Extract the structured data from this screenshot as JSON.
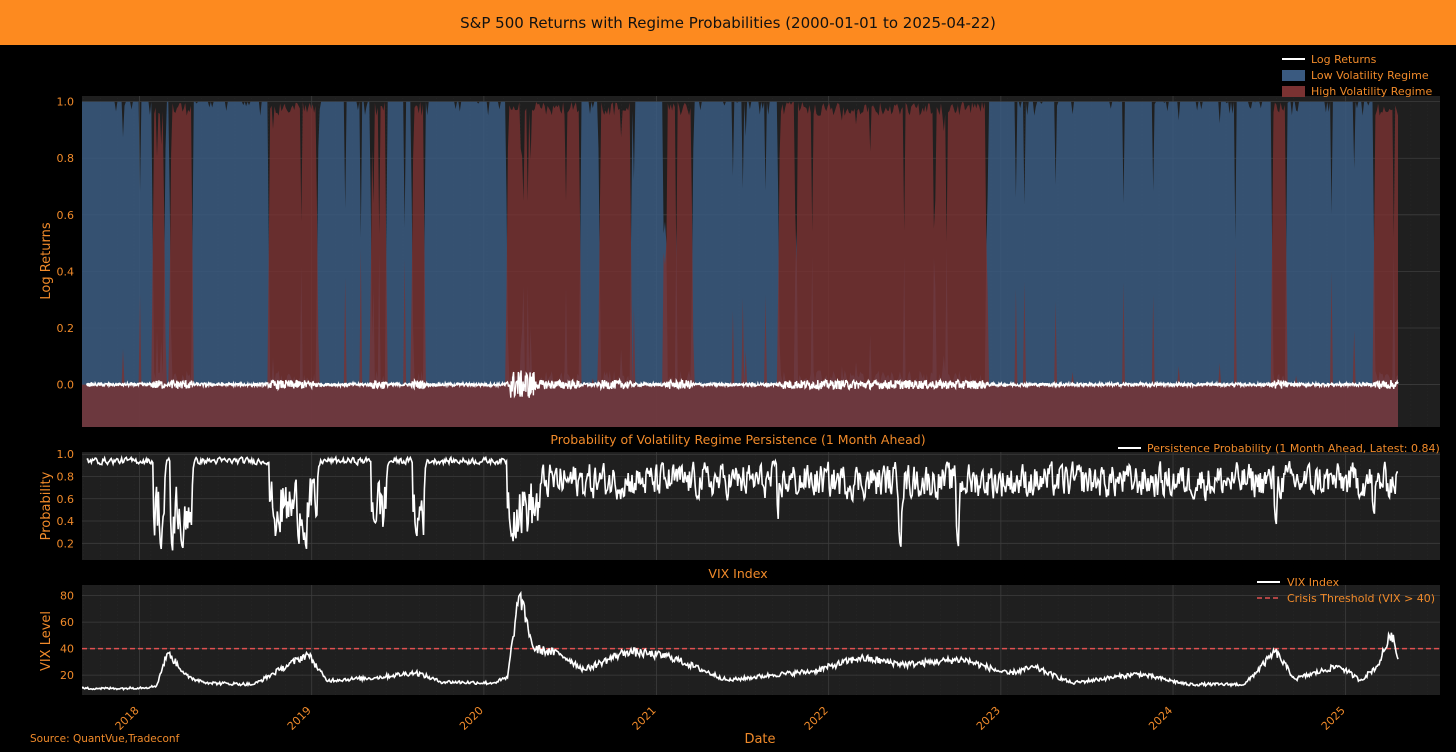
{
  "title": "S&P 500 Returns with Regime Probabilities (2000-01-01 to 2025-04-22)",
  "source": "Source: QuantVue,Tradeconf",
  "x_axis": {
    "label": "Date",
    "range": [
      "2017-09-01",
      "2025-07-20"
    ],
    "ticks": [
      "2018",
      "2019",
      "2020",
      "2021",
      "2022",
      "2023",
      "2024",
      "2025"
    ]
  },
  "colors": {
    "background": "#000000",
    "plot_background": "#1f1f1f",
    "banner": "#fd8a1f",
    "text": "#f08a2a",
    "low_regime": "#3a5a80",
    "high_regime": "#7a3232",
    "line": "#ffffff",
    "threshold": "#e05050"
  },
  "chart_data": [
    {
      "type": "area",
      "ylabel": "Log Returns",
      "ylim": [
        -0.15,
        1.02
      ],
      "yticks": [
        "0.0",
        "0.2",
        "0.4",
        "0.6",
        "0.8",
        "1.0"
      ],
      "grid": true,
      "legend_position": "top-right",
      "legend": [
        "Log Returns",
        "Low Volatility Regime",
        "High Volatility Regime"
      ],
      "series": [
        {
          "name": "Log Returns",
          "type": "line",
          "color": "#ffffff"
        },
        {
          "name": "Low Volatility Regime",
          "type": "area",
          "color": "#3a5a80"
        },
        {
          "name": "High Volatility Regime",
          "type": "area",
          "color": "#7a3232"
        }
      ],
      "high_volatility_periods": [
        [
          "2018-02-01",
          "2018-02-20"
        ],
        [
          "2018-03-10",
          "2018-04-20"
        ],
        [
          "2018-10-05",
          "2019-01-10"
        ],
        [
          "2019-05-10",
          "2019-06-05"
        ],
        [
          "2019-08-05",
          "2019-08-25"
        ],
        [
          "2020-02-22",
          "2020-06-20"
        ],
        [
          "2020-06-25",
          "2020-07-20"
        ],
        [
          "2020-09-05",
          "2020-11-05"
        ],
        [
          "2021-01-25",
          "2021-03-15"
        ],
        [
          "2021-09-20",
          "2022-11-30"
        ],
        [
          "2024-08-01",
          "2024-08-25"
        ],
        [
          "2025-03-05",
          "2025-04-22"
        ]
      ]
    },
    {
      "type": "line",
      "title": "Probability of Volatility Regime Persistence (1 Month Ahead)",
      "ylabel": "Probability",
      "ylim": [
        0.05,
        1.02
      ],
      "yticks": [
        "0.2",
        "0.4",
        "0.6",
        "0.8",
        "1.0"
      ],
      "grid": true,
      "legend_position": "top-right",
      "series": [
        {
          "name": "Persistence Probability (1 Month Ahead, Latest: 0.84)",
          "latest": 0.84
        }
      ]
    },
    {
      "type": "line",
      "title": "VIX Index",
      "ylabel": "VIX Level",
      "ylim": [
        5,
        88
      ],
      "yticks": [
        "20",
        "40",
        "60",
        "80"
      ],
      "grid": true,
      "legend_position": "top-right",
      "series": [
        {
          "name": "VIX Index",
          "x": [
            "2017-09-01",
            "2017-12-01",
            "2018-01-25",
            "2018-02-06",
            "2018-03-01",
            "2018-04-15",
            "2018-06-01",
            "2018-09-01",
            "2018-10-25",
            "2018-12-24",
            "2019-02-01",
            "2019-05-15",
            "2019-08-10",
            "2019-10-01",
            "2020-01-20",
            "2020-02-20",
            "2020-03-16",
            "2020-04-15",
            "2020-06-11",
            "2020-08-01",
            "2020-10-30",
            "2021-01-29",
            "2021-06-01",
            "2021-09-01",
            "2021-12-01",
            "2022-03-07",
            "2022-06-15",
            "2022-10-12",
            "2023-01-15",
            "2023-03-13",
            "2023-06-01",
            "2023-10-20",
            "2024-02-01",
            "2024-06-01",
            "2024-08-05",
            "2024-09-15",
            "2024-12-18",
            "2025-02-01",
            "2025-03-10",
            "2025-04-08",
            "2025-04-22"
          ],
          "values": [
            10,
            10,
            11,
            12,
            37,
            18,
            14,
            13,
            24,
            36,
            16,
            18,
            22,
            15,
            14,
            18,
            82,
            40,
            36,
            24,
            38,
            34,
            16,
            20,
            23,
            33,
            28,
            32,
            21,
            26,
            14,
            21,
            13,
            13,
            38,
            17,
            27,
            16,
            27,
            52,
            32
          ]
        },
        {
          "name": "Crisis Threshold (VIX > 40)",
          "value": 40,
          "style": "dashed"
        }
      ]
    }
  ]
}
